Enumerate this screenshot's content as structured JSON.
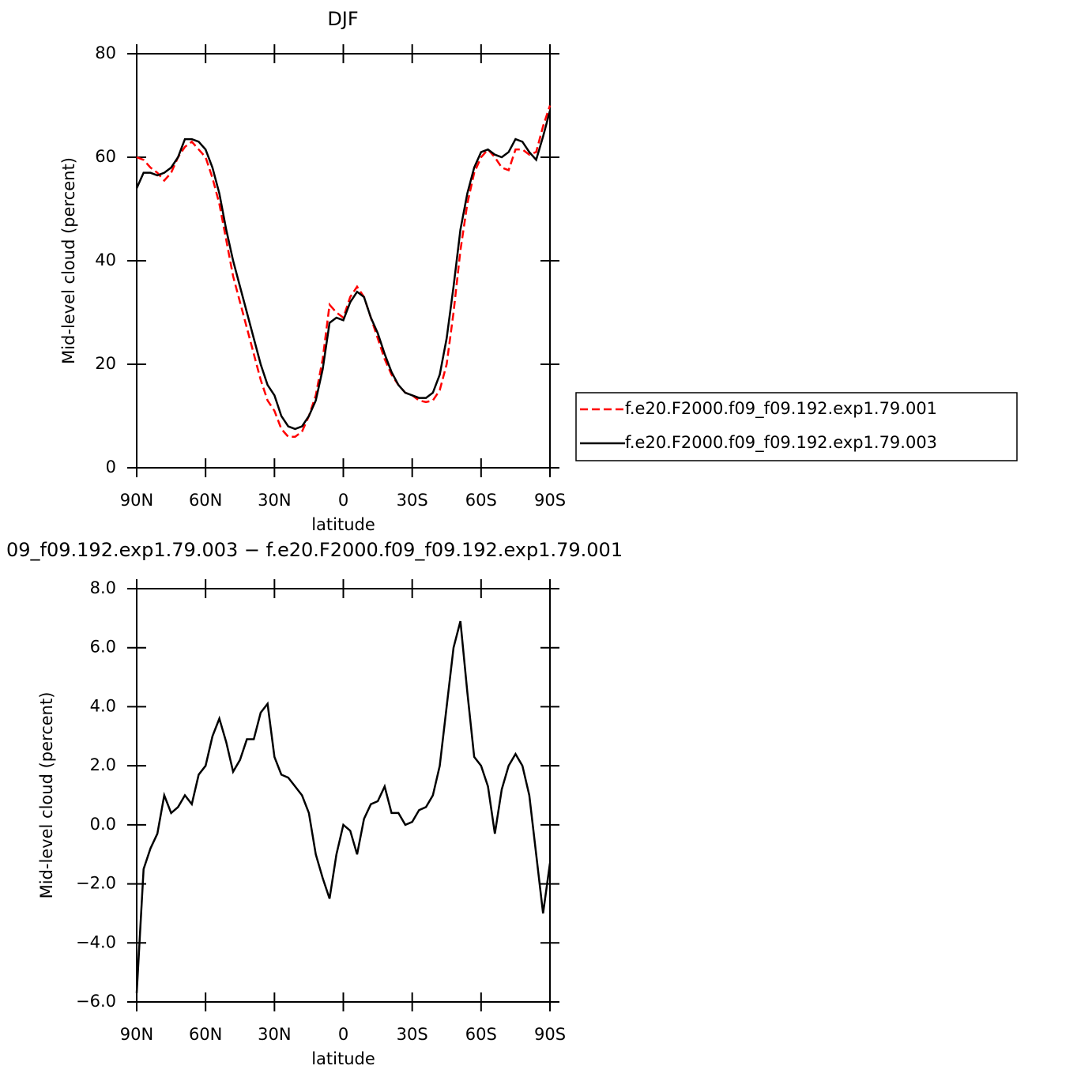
{
  "chart_data": [
    {
      "type": "line",
      "title": "DJF",
      "xlabel": "latitude",
      "ylabel": "Mid-level cloud (percent)",
      "x": [
        90,
        87,
        84,
        81,
        78,
        75,
        72,
        69,
        66,
        63,
        60,
        57,
        54,
        51,
        48,
        45,
        42,
        39,
        36,
        33,
        30,
        27,
        24,
        21,
        18,
        15,
        12,
        9,
        6,
        3,
        0,
        -3,
        -6,
        -9,
        -12,
        -15,
        -18,
        -21,
        -24,
        -27,
        -30,
        -33,
        -36,
        -39,
        -42,
        -45,
        -48,
        -51,
        -54,
        -57,
        -60,
        -63,
        -66,
        -69,
        -72,
        -75,
        -78,
        -81,
        -84,
        -87,
        -90
      ],
      "xlim": [
        90,
        -90
      ],
      "xticks": [
        {
          "value": 90,
          "label": "90N"
        },
        {
          "value": 60,
          "label": "60N"
        },
        {
          "value": 30,
          "label": "30N"
        },
        0,
        {
          "value": -30,
          "label": "30S"
        },
        {
          "value": -60,
          "label": "60S"
        },
        {
          "value": -90,
          "label": "90S"
        }
      ],
      "ylim": [
        0,
        80
      ],
      "yticks": [
        0,
        20,
        40,
        60,
        80
      ],
      "legend": "outside-right",
      "series": [
        {
          "name": "f.e20.F2000.f09_f09.192.exp1.79.001",
          "color": "#ff0000",
          "style": "dashed",
          "values": [
            60,
            59.5,
            58,
            57,
            55.5,
            57,
            60,
            62,
            63,
            61.5,
            60,
            56,
            51,
            44,
            37,
            32,
            27,
            22,
            17,
            13,
            11,
            7.5,
            6,
            6,
            7,
            10,
            14,
            21,
            31.5,
            30,
            29,
            33,
            35,
            33,
            29,
            25,
            21,
            18,
            16,
            14.5,
            14,
            13,
            12.7,
            13,
            15,
            20,
            30,
            42,
            51,
            57,
            60,
            61.5,
            60,
            58,
            57.5,
            61.5,
            61.5,
            60.5,
            61,
            66,
            70
          ]
        },
        {
          "name": "f.e20.F2000.f09_f09.192.exp1.79.003",
          "color": "#000000",
          "style": "solid",
          "values": [
            54,
            57,
            57,
            56.5,
            57,
            58,
            60,
            63.5,
            63.5,
            63,
            61.5,
            58,
            53,
            46,
            40,
            35,
            30,
            25,
            20,
            16,
            14,
            10,
            8,
            7.5,
            8,
            10,
            13,
            19,
            28,
            29,
            28.5,
            32,
            34,
            33,
            29,
            26,
            22,
            18.5,
            16,
            14.5,
            14,
            13.5,
            13.5,
            14.5,
            18,
            25,
            35,
            46,
            53,
            58,
            61,
            61.5,
            60.5,
            60,
            61,
            63.5,
            63,
            61,
            59.5,
            64,
            69
          ]
        }
      ]
    },
    {
      "type": "line",
      "title": "09_f09.192.exp1.79.003 − f.e20.F2000.f09_f09.192.exp1.79.001",
      "xlabel": "latitude",
      "ylabel": "Mid-level cloud (percent)",
      "x": [
        90,
        87,
        84,
        81,
        78,
        75,
        72,
        69,
        66,
        63,
        60,
        57,
        54,
        51,
        48,
        45,
        42,
        39,
        36,
        33,
        30,
        27,
        24,
        21,
        18,
        15,
        12,
        9,
        6,
        3,
        0,
        -3,
        -6,
        -9,
        -12,
        -15,
        -18,
        -21,
        -24,
        -27,
        -30,
        -33,
        -36,
        -39,
        -42,
        -45,
        -48,
        -51,
        -54,
        -57,
        -60,
        -63,
        -66,
        -69,
        -72,
        -75,
        -78,
        -81,
        -84,
        -87,
        -90
      ],
      "xlim": [
        90,
        -90
      ],
      "xticks": [
        {
          "value": 90,
          "label": "90N"
        },
        {
          "value": 60,
          "label": "60N"
        },
        {
          "value": 30,
          "label": "30N"
        },
        0,
        {
          "value": -30,
          "label": "30S"
        },
        {
          "value": -60,
          "label": "60S"
        },
        {
          "value": -90,
          "label": "90S"
        }
      ],
      "ylim": [
        -6,
        8
      ],
      "yticks": [
        {
          "value": -6,
          "label": "−6.0"
        },
        {
          "value": -4,
          "label": "−4.0"
        },
        {
          "value": -2,
          "label": "−2.0"
        },
        {
          "value": 0,
          "label": "0.0"
        },
        {
          "value": 2,
          "label": "2.0"
        },
        {
          "value": 4,
          "label": "4.0"
        },
        {
          "value": 6,
          "label": "6.0"
        },
        {
          "value": 8,
          "label": "8.0"
        }
      ],
      "series": [
        {
          "color": "#000000",
          "style": "solid",
          "values": [
            -5.7,
            -1.5,
            -0.8,
            -0.3,
            1.0,
            0.4,
            0.6,
            1.0,
            0.7,
            1.7,
            2.0,
            3.0,
            3.6,
            2.8,
            1.8,
            2.2,
            2.9,
            2.9,
            3.8,
            4.1,
            2.3,
            1.7,
            1.6,
            1.3,
            1.0,
            0.4,
            -1.0,
            -1.8,
            -2.5,
            -1.0,
            0.0,
            -0.2,
            -1.0,
            0.2,
            0.7,
            0.8,
            1.3,
            0.4,
            0.4,
            0.0,
            0.1,
            0.5,
            0.6,
            1.0,
            2.0,
            4.0,
            6.0,
            6.9,
            4.5,
            2.3,
            2.0,
            1.3,
            -0.3,
            1.2,
            2.0,
            2.4,
            2.0,
            1.0,
            -1.0,
            -3.0,
            -1.3
          ]
        }
      ]
    }
  ]
}
